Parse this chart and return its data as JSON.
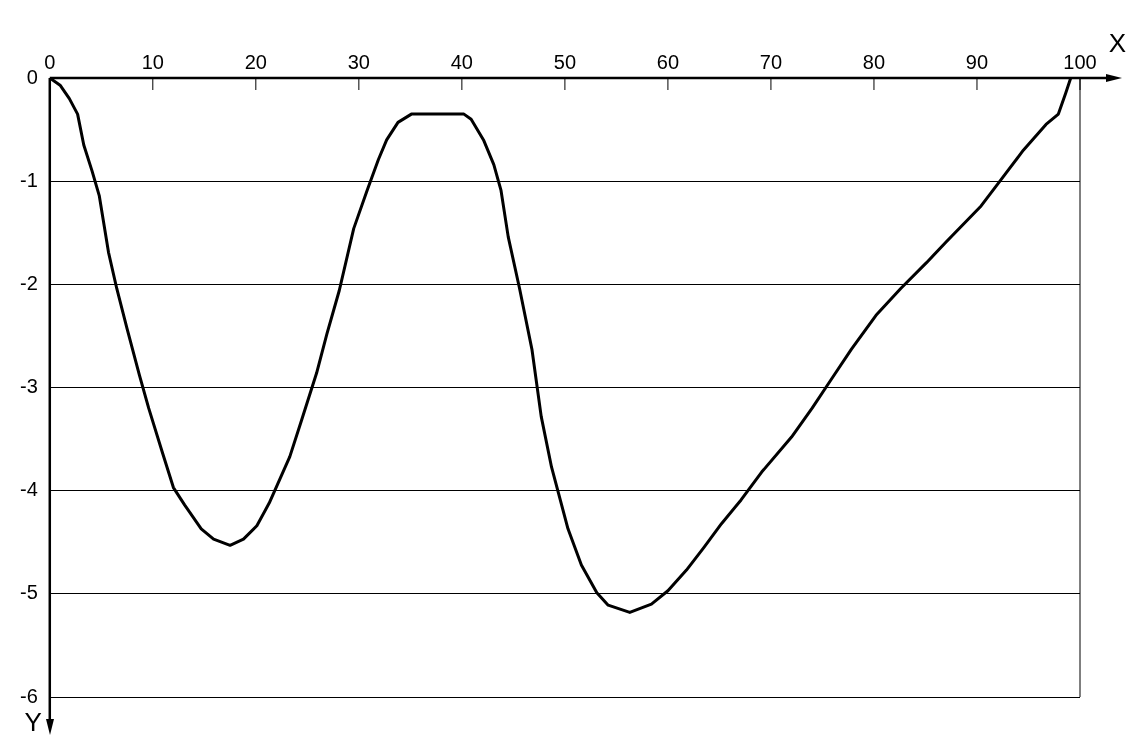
{
  "chart_data": {
    "type": "line",
    "xlabel": "X",
    "ylabel": "Y",
    "xlim": [
      0,
      100
    ],
    "xticks": [
      0,
      10,
      20,
      30,
      40,
      50,
      60,
      70,
      80,
      90,
      100
    ],
    "ylim": [
      -6,
      0
    ],
    "yticks": [
      0,
      -1,
      -2,
      -3,
      -4,
      -5,
      -6
    ],
    "grid": "y",
    "marker": "none",
    "line_style": "solid",
    "legend": false,
    "series": [
      {
        "color": "#000000",
        "x": [
          0,
          1,
          1.9,
          2.7,
          3.3,
          4.1,
          4.8,
          5.7,
          6.5,
          7.5,
          8.7,
          9.6,
          10.9,
          12,
          13.1,
          14.7,
          15.9,
          17.5,
          18.8,
          20.1,
          21.3,
          23.3,
          24.4,
          25.9,
          26.9,
          28.1,
          29.5,
          30.8,
          31.9,
          32.7,
          33.8,
          35.1,
          38,
          40.2,
          40.9,
          42.1,
          43.1,
          43.8,
          44.5,
          45.6,
          46.8,
          47.7,
          48.7,
          49.5,
          50.3,
          51.6,
          53.1,
          54.2,
          56.3,
          58.4,
          60,
          61.8,
          63.5,
          65.2,
          67.1,
          69.1,
          72,
          74,
          75.8,
          77.8,
          80.2,
          82.6,
          85.1,
          87,
          90.4,
          92.3,
          94.5,
          96.7,
          97.9,
          98.6,
          99.1
        ],
        "values": [
          0,
          -0.07,
          -0.2,
          -0.35,
          -0.65,
          -0.9,
          -1.14,
          -1.69,
          -2.04,
          -2.43,
          -2.88,
          -3.2,
          -3.62,
          -3.97,
          -4.14,
          -4.37,
          -4.47,
          -4.53,
          -4.47,
          -4.34,
          -4.12,
          -3.67,
          -3.33,
          -2.86,
          -2.48,
          -2.06,
          -1.46,
          -1.09,
          -0.79,
          -0.6,
          -0.43,
          -0.35,
          -0.35,
          -0.35,
          -0.4,
          -0.6,
          -0.84,
          -1.09,
          -1.54,
          -2.04,
          -2.63,
          -3.28,
          -3.77,
          -4.07,
          -4.37,
          -4.72,
          -4.99,
          -5.11,
          -5.18,
          -5.1,
          -4.97,
          -4.77,
          -4.55,
          -4.32,
          -4.09,
          -3.82,
          -3.48,
          -3.2,
          -2.93,
          -2.63,
          -2.3,
          -2.04,
          -1.79,
          -1.59,
          -1.24,
          -0.99,
          -0.7,
          -0.45,
          -0.35,
          -0.15,
          0
        ]
      }
    ]
  }
}
